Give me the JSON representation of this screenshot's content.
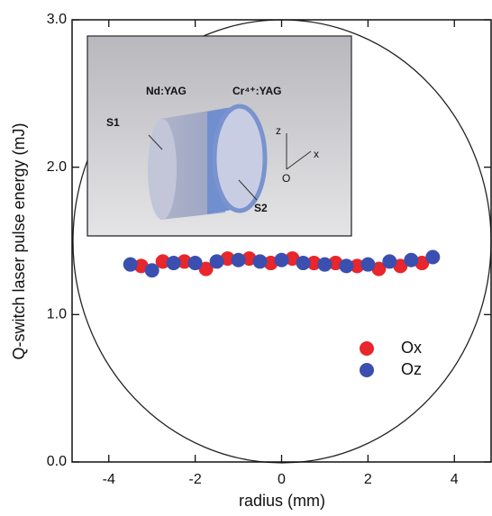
{
  "chart_data": {
    "type": "scatter",
    "x_label": "radius (mm)",
    "y_label": "Q-switch laser pulse energy (mJ)",
    "xlim": [
      -4.85,
      4.85
    ],
    "xticks": [
      -4,
      -2,
      0,
      2,
      4
    ],
    "ylim": [
      0,
      3
    ],
    "yticks": [
      {
        "value": 0,
        "label": "0.0"
      },
      {
        "value": 1,
        "label": "1.0"
      },
      {
        "value": 2,
        "label": "2.0"
      },
      {
        "value": 3,
        "label": "3.0"
      }
    ],
    "legend": "right",
    "annotations": [
      "Nd:YAG",
      "Cr⁴⁺:YAG",
      "S1",
      "S2",
      "z",
      "x",
      "O"
    ],
    "series": [
      {
        "name": "Ox",
        "color": "#e8262b",
        "x": [
          -3.25,
          -2.75,
          -2.25,
          -1.75,
          -1.25,
          -0.75,
          -0.25,
          0.25,
          0.75,
          1.25,
          1.75,
          2.25,
          2.75,
          3.25
        ],
        "values": [
          1.33,
          1.36,
          1.36,
          1.31,
          1.38,
          1.38,
          1.35,
          1.38,
          1.35,
          1.35,
          1.33,
          1.31,
          1.33,
          1.35
        ]
      },
      {
        "name": "Oz",
        "color": "#3a4fb0",
        "x": [
          -3.5,
          -3.0,
          -2.5,
          -2.0,
          -1.5,
          -1.0,
          -0.5,
          0.0,
          0.5,
          1.0,
          1.5,
          2.0,
          2.5,
          3.0,
          3.5
        ],
        "values": [
          1.34,
          1.3,
          1.35,
          1.35,
          1.36,
          1.37,
          1.36,
          1.37,
          1.35,
          1.34,
          1.33,
          1.34,
          1.36,
          1.37,
          1.39
        ]
      }
    ]
  }
}
